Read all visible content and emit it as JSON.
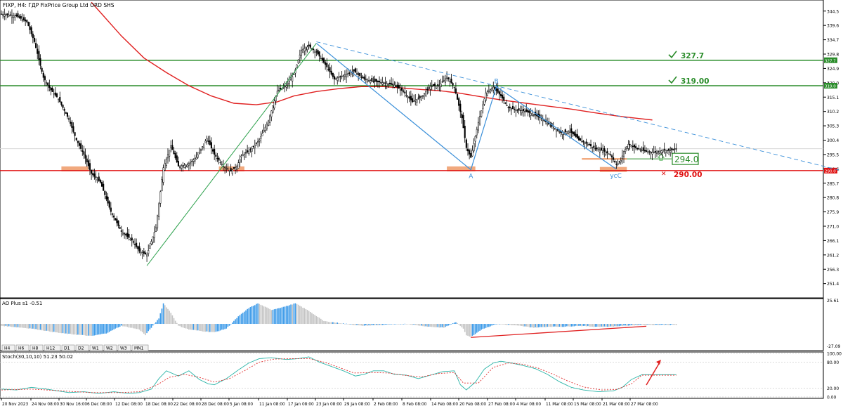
{
  "header": {
    "title": "FIXP, H4:  ГДР FixPrice Group Ltd ORD SHS"
  },
  "colors": {
    "axis": "#000000",
    "grid": "#d8d8d8",
    "ma": "#e02020",
    "level_green": "#2a8c2a",
    "level_red": "#e01010",
    "wave_blue": "#3a8fd9",
    "wave_green": "#2aa04a",
    "zone": "#f0a070",
    "ao_up": "#3d9be9",
    "ao_down": "#c4c4c4",
    "stoch_main": "#2bb5a8",
    "stoch_signal": "#e03030"
  },
  "timeframes": [
    "H4",
    "H6",
    "H8",
    "H12",
    "D1",
    "D2",
    "W1",
    "W2",
    "W3",
    "MN1"
  ],
  "chart_data": [
    {
      "type": "candlestick",
      "name": "price",
      "ylim": [
        247.0,
        347.8
      ],
      "y_ticks": [
        "344.5",
        "339.6",
        "334.7",
        "329.8",
        "324.9",
        "320.0",
        "315.1",
        "310.2",
        "305.3",
        "300.4",
        "295.5",
        "290.6",
        "285.7",
        "280.8",
        "275.9",
        "271.0",
        "266.1",
        "261.2",
        "256.3",
        "251.4"
      ],
      "x_labels": [
        "20 Nov 2023",
        "24 Nov 08:00",
        "30 Nov 16:00",
        "6 Dec 08:00",
        "12 Dec 08:00",
        "18 Dec 08:00",
        "22 Dec 08:00",
        "28 Dec 08:00",
        "5 Jan 08:00",
        "11 Jan 08:00",
        "17 Jan 08:00",
        "23 Jan 08:00",
        "29 Jan 08:00",
        "2 Feb 08:00",
        "8 Feb 08:00",
        "14 Feb 08:00",
        "20 Feb 08:00",
        "27 Feb 08:00",
        "4 Mar 08:00",
        "11 Mar 08:00",
        "15 Mar 08:00",
        "21 Mar 08:00",
        "27 Mar 08:00"
      ],
      "current_price": 297.5,
      "path": [
        [
          0,
          343.5
        ],
        [
          10,
          342.8
        ],
        [
          17,
          340.8
        ],
        [
          22,
          334.0
        ],
        [
          28,
          321.8
        ],
        [
          33,
          317.5
        ],
        [
          38,
          314.5
        ],
        [
          45,
          307.5
        ],
        [
          50,
          300.5
        ],
        [
          55,
          295.5
        ],
        [
          60,
          289.0
        ],
        [
          66,
          286.0
        ],
        [
          73,
          276.0
        ],
        [
          80,
          269.2
        ],
        [
          87,
          266.2
        ],
        [
          92,
          262.5
        ],
        [
          97,
          261.2
        ],
        [
          103,
          270.5
        ],
        [
          108,
          291.0
        ],
        [
          113,
          298.5
        ],
        [
          118,
          291.5
        ],
        [
          124,
          292.0
        ],
        [
          130,
          294.5
        ],
        [
          137,
          301.0
        ],
        [
          142,
          295.5
        ],
        [
          148,
          291.5
        ],
        [
          153,
          289.8
        ],
        [
          157,
          291.5
        ],
        [
          160,
          295.0
        ],
        [
          166,
          297.0
        ],
        [
          172,
          300.5
        ],
        [
          178,
          307.0
        ],
        [
          184,
          317.2
        ],
        [
          190,
          319.0
        ],
        [
          195,
          322.8
        ],
        [
          200,
          331.2
        ],
        [
          205,
          332.5
        ],
        [
          210,
          330.5
        ],
        [
          216,
          326.2
        ],
        [
          222,
          321.2
        ],
        [
          228,
          322.5
        ],
        [
          235,
          324.0
        ],
        [
          242,
          321.2
        ],
        [
          248,
          320.5
        ],
        [
          255,
          320.0
        ],
        [
          262,
          319.2
        ],
        [
          268,
          317.0
        ],
        [
          274,
          313.5
        ],
        [
          280,
          315.2
        ],
        [
          286,
          318.8
        ],
        [
          292,
          319.0
        ],
        [
          297,
          322.0
        ],
        [
          302,
          318.5
        ],
        [
          307,
          308.0
        ],
        [
          310,
          297.8
        ],
        [
          313,
          294.5
        ],
        [
          318,
          306.5
        ],
        [
          323,
          316.5
        ],
        [
          328,
          318.5
        ],
        [
          333,
          315.5
        ],
        [
          338,
          311.5
        ],
        [
          343,
          310.8
        ],
        [
          349,
          310.3
        ],
        [
          355,
          309.2
        ],
        [
          361,
          307.5
        ],
        [
          367,
          305.0
        ],
        [
          373,
          303.0
        ],
        [
          379,
          303.5
        ],
        [
          385,
          300.5
        ],
        [
          391,
          299.0
        ],
        [
          396,
          297.5
        ],
        [
          401,
          296.8
        ],
        [
          406,
          295.5
        ],
        [
          410,
          292.0
        ],
        [
          413,
          293.5
        ],
        [
          415,
          296.5
        ],
        [
          418,
          299.0
        ],
        [
          424,
          297.5
        ],
        [
          430,
          296.5
        ],
        [
          436,
          296.2
        ],
        [
          441,
          297.0
        ],
        [
          446,
          296.8
        ],
        [
          450,
          297.5
        ]
      ],
      "moving_average": [
        [
          60,
          347.5
        ],
        [
          80,
          336.0
        ],
        [
          95,
          328.5
        ],
        [
          110,
          323.5
        ],
        [
          125,
          319.0
        ],
        [
          140,
          315.5
        ],
        [
          155,
          313.0
        ],
        [
          170,
          312.5
        ],
        [
          184,
          313.5
        ],
        [
          195,
          315.5
        ],
        [
          210,
          317.0
        ],
        [
          225,
          318.0
        ],
        [
          240,
          318.7
        ],
        [
          255,
          318.7
        ],
        [
          268,
          318.2
        ],
        [
          280,
          317.7
        ],
        [
          292,
          317.3
        ],
        [
          305,
          316.5
        ],
        [
          320,
          315.2
        ],
        [
          335,
          314.0
        ],
        [
          350,
          313.0
        ],
        [
          365,
          312.0
        ],
        [
          380,
          311.0
        ],
        [
          395,
          309.8
        ],
        [
          410,
          308.7
        ],
        [
          425,
          307.8
        ],
        [
          434,
          307.3
        ]
      ],
      "horizontal_levels": [
        {
          "value": 327.7,
          "label": "327.7",
          "axis_label": "327.7",
          "color": "#2a8c2a",
          "mark": "check"
        },
        {
          "value": 319.0,
          "label": "319.00",
          "axis_label": "319.0",
          "color": "#2a8c2a",
          "mark": "check"
        },
        {
          "value": 290.0,
          "label": "290.00",
          "axis_label": "290.0",
          "color": "#e01010",
          "mark": "cross"
        }
      ],
      "target_box": {
        "value": 294.0,
        "label": "294.0"
      },
      "wave_points": [
        {
          "label": "",
          "x": 97,
          "y": 257.5
        },
        {
          "label": "",
          "x": 210,
          "y": 333.5
        },
        {
          "label": "A",
          "x": 313,
          "y": 290.3
        },
        {
          "label": "B",
          "x": 330,
          "y": 318.7
        },
        {
          "label": "усС",
          "x": 410,
          "y": 290.5
        }
      ],
      "trendline": [
        [
          210,
          334.0
        ],
        [
          560,
          290.0
        ]
      ],
      "support_zones": [
        [
          40,
          58,
          290.6
        ],
        [
          145,
          162,
          290.6
        ],
        [
          297,
          316,
          290.6
        ],
        [
          399,
          417,
          290.4
        ]
      ],
      "support_line": [
        [
          387,
          417,
          294.0
        ]
      ]
    },
    {
      "type": "bar",
      "name": "AO Plus",
      "title": "AO Plus s1 -0.51",
      "ylim": [
        -27.09,
        25.61
      ],
      "y_ticks": [
        "25.61",
        "-27.09"
      ],
      "positive_color": "#3d9be9",
      "negative_color": "#c4c4c4",
      "profile": [
        [
          0,
          -2
        ],
        [
          20,
          -5
        ],
        [
          40,
          -10
        ],
        [
          60,
          -13
        ],
        [
          70,
          -10
        ],
        [
          80,
          -2
        ],
        [
          92,
          -6
        ],
        [
          96,
          -12
        ],
        [
          105,
          6
        ],
        [
          108,
          22
        ],
        [
          113,
          12
        ],
        [
          118,
          -2
        ],
        [
          125,
          -6
        ],
        [
          135,
          -8
        ],
        [
          142,
          -9
        ],
        [
          150,
          -5
        ],
        [
          158,
          8
        ],
        [
          165,
          17
        ],
        [
          171,
          22
        ],
        [
          180,
          15
        ],
        [
          190,
          19
        ],
        [
          196,
          22
        ],
        [
          205,
          14
        ],
        [
          215,
          3
        ],
        [
          225,
          1
        ],
        [
          240,
          -2
        ],
        [
          255,
          -1
        ],
        [
          270,
          0
        ],
        [
          285,
          -3
        ],
        [
          295,
          -4
        ],
        [
          303,
          2
        ],
        [
          308,
          -5
        ],
        [
          310,
          -12
        ],
        [
          313,
          -14
        ],
        [
          320,
          -6
        ],
        [
          330,
          0
        ],
        [
          345,
          -2
        ],
        [
          355,
          -4
        ],
        [
          365,
          -3
        ],
        [
          375,
          -3
        ],
        [
          385,
          -2
        ],
        [
          395,
          -3
        ],
        [
          405,
          -3
        ],
        [
          415,
          -2
        ],
        [
          425,
          -1
        ],
        [
          434,
          -1
        ]
      ],
      "divergence_line": [
        [
          313,
          -14.5
        ],
        [
          430,
          -2.5
        ]
      ]
    },
    {
      "type": "line",
      "name": "Stoch",
      "title": "Stoch(30,10,10) 51.23 50.02",
      "ylim": [
        0,
        100
      ],
      "y_ticks": [
        "100.00",
        "80.00",
        "20.00",
        "0.00"
      ],
      "series": [
        {
          "name": "main",
          "values": [
            [
              0,
              18
            ],
            [
              10,
              16
            ],
            [
              20,
              22
            ],
            [
              30,
              18
            ],
            [
              45,
              10
            ],
            [
              55,
              12
            ],
            [
              65,
              8
            ],
            [
              75,
              12
            ],
            [
              85,
              8
            ],
            [
              92,
              10
            ],
            [
              100,
              18
            ],
            [
              105,
              42
            ],
            [
              110,
              60
            ],
            [
              118,
              48
            ],
            [
              125,
              60
            ],
            [
              132,
              40
            ],
            [
              138,
              30
            ],
            [
              142,
              28
            ],
            [
              150,
              42
            ],
            [
              158,
              62
            ],
            [
              165,
              78
            ],
            [
              172,
              88
            ],
            [
              180,
              90
            ],
            [
              190,
              86
            ],
            [
              198,
              88
            ],
            [
              205,
              92
            ],
            [
              212,
              80
            ],
            [
              220,
              70
            ],
            [
              228,
              60
            ],
            [
              236,
              48
            ],
            [
              242,
              52
            ],
            [
              248,
              60
            ],
            [
              255,
              60
            ],
            [
              262,
              52
            ],
            [
              270,
              50
            ],
            [
              278,
              42
            ],
            [
              286,
              50
            ],
            [
              294,
              58
            ],
            [
              302,
              60
            ],
            [
              306,
              28
            ],
            [
              310,
              16
            ],
            [
              316,
              34
            ],
            [
              322,
              64
            ],
            [
              328,
              78
            ],
            [
              333,
              82
            ],
            [
              340,
              78
            ],
            [
              348,
              72
            ],
            [
              356,
              65
            ],
            [
              364,
              52
            ],
            [
              372,
              35
            ],
            [
              380,
              22
            ],
            [
              388,
              16
            ],
            [
              398,
              12
            ],
            [
              408,
              14
            ],
            [
              414,
              22
            ],
            [
              420,
              40
            ],
            [
              427,
              51
            ]
          ]
        },
        {
          "name": "signal",
          "values": [
            [
              0,
              16
            ],
            [
              20,
              18
            ],
            [
              40,
              14
            ],
            [
              60,
              10
            ],
            [
              80,
              10
            ],
            [
              92,
              12
            ],
            [
              103,
              26
            ],
            [
              112,
              45
            ],
            [
              122,
              52
            ],
            [
              132,
              45
            ],
            [
              142,
              34
            ],
            [
              152,
              42
            ],
            [
              162,
              60
            ],
            [
              172,
              80
            ],
            [
              182,
              87
            ],
            [
              195,
              88
            ],
            [
              205,
              88
            ],
            [
              215,
              80
            ],
            [
              225,
              68
            ],
            [
              235,
              55
            ],
            [
              248,
              56
            ],
            [
              258,
              55
            ],
            [
              268,
              50
            ],
            [
              280,
              46
            ],
            [
              292,
              54
            ],
            [
              302,
              56
            ],
            [
              308,
              32
            ],
            [
              318,
              32
            ],
            [
              328,
              68
            ],
            [
              338,
              78
            ],
            [
              348,
              75
            ],
            [
              358,
              66
            ],
            [
              368,
              52
            ],
            [
              378,
              36
            ],
            [
              388,
              23
            ],
            [
              400,
              16
            ],
            [
              410,
              17
            ],
            [
              420,
              30
            ],
            [
              427,
              50
            ]
          ]
        }
      ]
    }
  ]
}
